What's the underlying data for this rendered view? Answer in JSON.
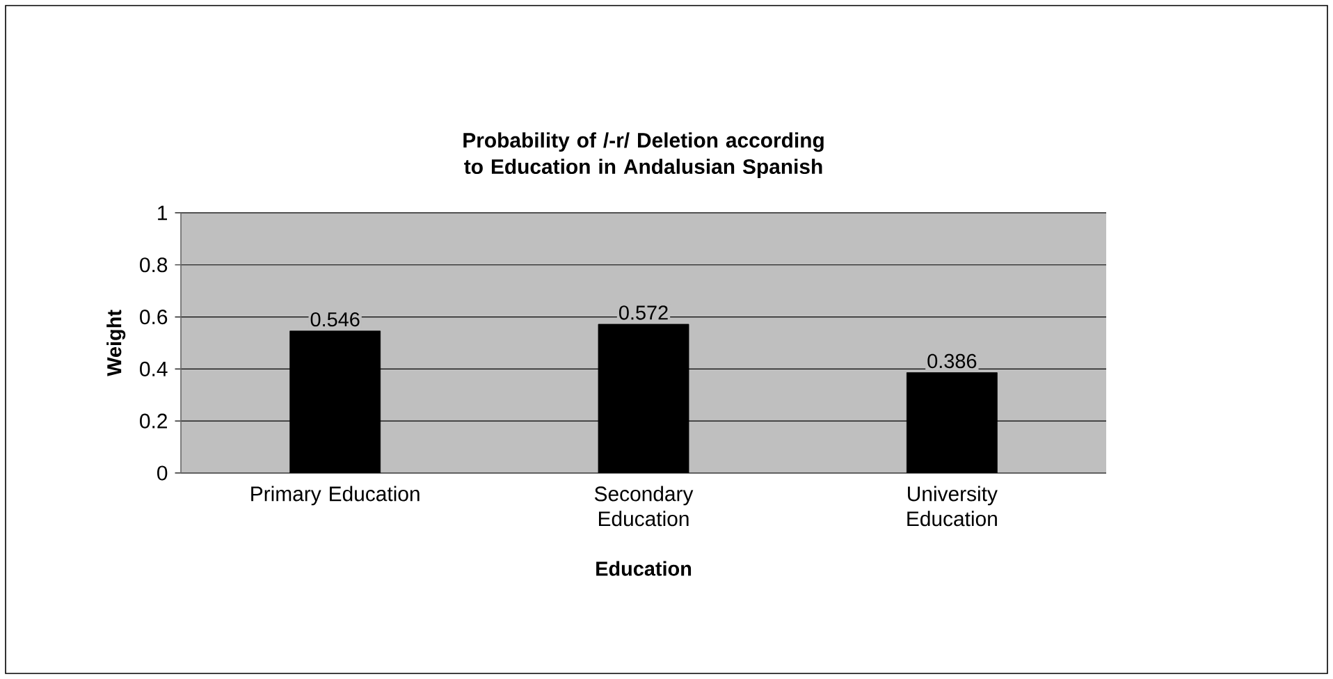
{
  "chart_data": {
    "type": "bar",
    "title": "Probability of /-r/ Deletion according to Education in Andalusian Spanish",
    "xlabel": "Education",
    "ylabel": "Weight",
    "categories": [
      "Primary Education",
      "Secondary Education",
      "University Education"
    ],
    "values": [
      0.546,
      0.572,
      0.386
    ],
    "color": "#000000",
    "ylim": [
      0,
      1
    ],
    "yticks": [
      0,
      0.2,
      0.4,
      0.6,
      0.8,
      1
    ],
    "grid": "y",
    "data_labels": true
  }
}
